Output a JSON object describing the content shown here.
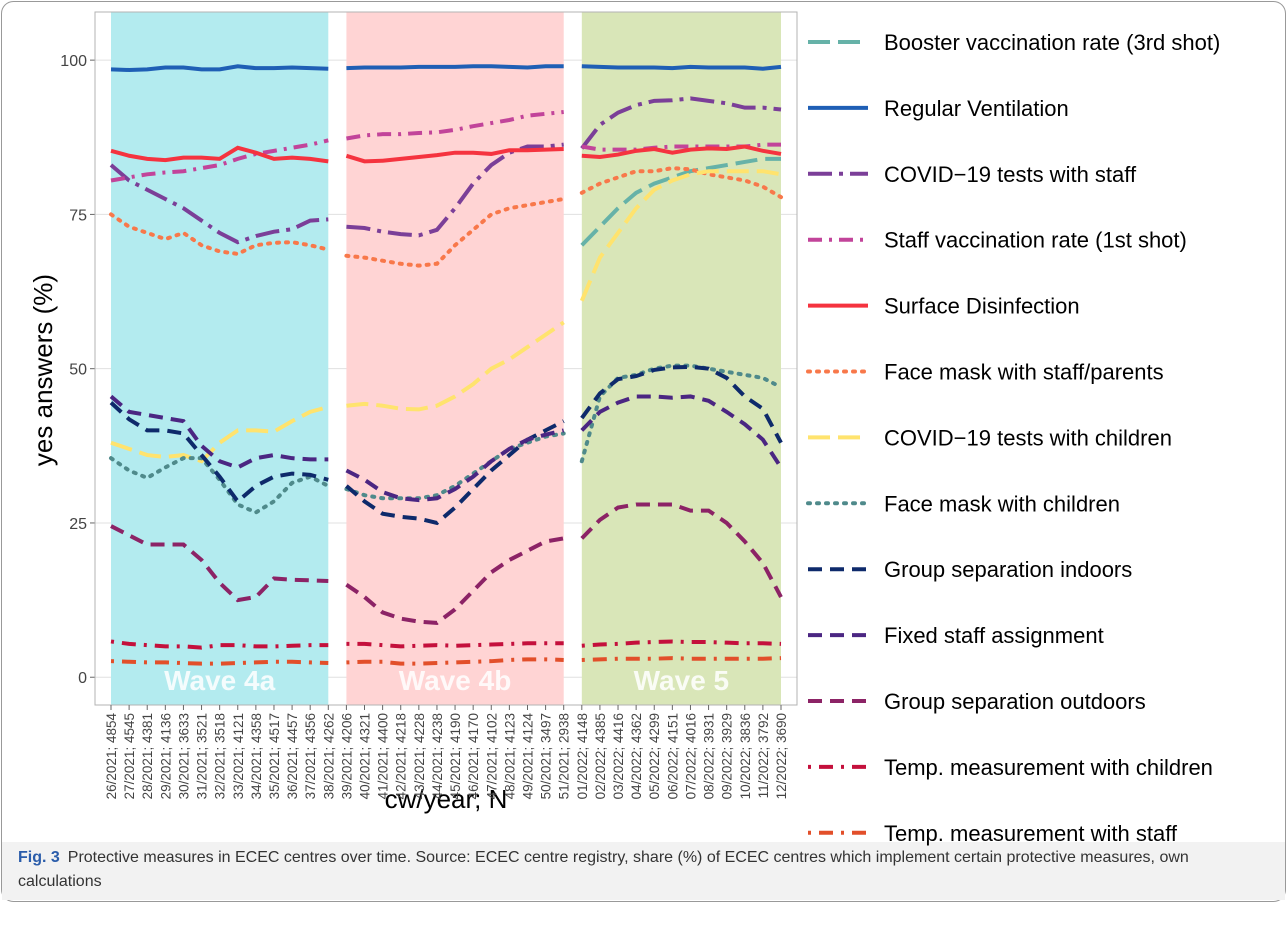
{
  "chart_data": {
    "type": "line",
    "y_label": "yes answers (%)",
    "x_label": "cw/year; N",
    "caption_label": "Fig. 3",
    "caption": "Protective measures in ECEC centres over time. Source: ECEC centre registry, share (%) of ECEC centres which implement certain protective measures, own calculations",
    "categories": [
      "26/2021; 4854",
      "27/2021; 4545",
      "28/2021; 4381",
      "29/2021; 4136",
      "30/2021; 3633",
      "31/2021; 3521",
      "32/2021; 3518",
      "33/2021; 4121",
      "34/2021; 4358",
      "35/2021; 4517",
      "36/2021; 4457",
      "37/2021; 4356",
      "38/2021; 4262",
      "39/2021; 4206",
      "40/2021; 4321",
      "41/2021; 4400",
      "42/2021; 4218",
      "43/2021; 4228",
      "44/2021; 4238",
      "45/2021; 4190",
      "46/2021; 4170",
      "47/2021; 4102",
      "48/2021; 4123",
      "49/2021; 4124",
      "50/2021; 3497",
      "51/2021; 2938",
      "01/2022; 4148",
      "02/2022; 4385",
      "03/2022; 4416",
      "04/2022; 4362",
      "05/2022; 4299",
      "06/2022; 4151",
      "07/2022; 4016",
      "08/2022; 3931",
      "09/2022; 3929",
      "10/2022; 3836",
      "11/2022; 3792",
      "12/2022; 3690"
    ],
    "bands": [
      {
        "label": "Wave 4a",
        "color": "#b3ebef",
        "from": "26/2021; 4854",
        "to": "38/2021; 4262"
      },
      {
        "label": "Wave 4b",
        "color": "#ffd4d4",
        "from": "39/2021; 4206",
        "to": "51/2021; 2938"
      },
      {
        "label": "Wave 5",
        "color": "#d9e6b8",
        "from": "01/2022; 4148",
        "to": "12/2022; 3690"
      }
    ],
    "ylim": [
      -4.5,
      107.8
    ],
    "yticks": [
      0,
      25,
      50,
      75,
      100
    ],
    "grid": true,
    "legend": "right",
    "series": [
      {
        "name": "Booster vaccination rate (3rd shot)",
        "color": "#66b2a8",
        "dash": "longdash",
        "values": [
          null,
          null,
          null,
          null,
          null,
          null,
          null,
          null,
          null,
          null,
          null,
          null,
          null,
          null,
          null,
          null,
          null,
          null,
          null,
          null,
          null,
          null,
          null,
          null,
          null,
          null,
          70,
          73,
          76,
          78.5,
          80,
          81,
          82,
          82.5,
          83,
          83.5,
          84,
          84
        ]
      },
      {
        "name": "Regular Ventilation",
        "color": "#1f5fb5",
        "dash": "solid",
        "values": [
          98.5,
          98.4,
          98.5,
          98.8,
          98.8,
          98.5,
          98.5,
          99,
          98.7,
          98.7,
          98.8,
          98.7,
          98.6,
          98.7,
          98.8,
          98.8,
          98.8,
          98.9,
          98.9,
          98.9,
          99,
          99,
          98.9,
          98.8,
          99,
          99,
          99,
          98.9,
          98.8,
          98.8,
          98.8,
          98.7,
          98.9,
          98.8,
          98.8,
          98.8,
          98.6,
          98.9
        ]
      },
      {
        "name": "COVID−19 tests with staff",
        "color": "#7b3f98",
        "dash": "twodash",
        "values": [
          83,
          80.5,
          79,
          77.5,
          76,
          74,
          72,
          70.5,
          71.5,
          72.2,
          72.6,
          74,
          74.2,
          73,
          72.8,
          72.2,
          71.8,
          71.6,
          72.5,
          76,
          80,
          83,
          85,
          86,
          86,
          86.3,
          85.7,
          89.5,
          91.5,
          92.7,
          93.4,
          93.5,
          93.8,
          93.4,
          93,
          92.3,
          92.3,
          92
        ]
      },
      {
        "name": "Staff vaccination rate (1st shot)",
        "color": "#c2449a",
        "dash": "dashdot",
        "values": [
          80.5,
          81,
          81.5,
          81.8,
          82,
          82.5,
          83,
          84,
          84.8,
          85.3,
          85.8,
          86.3,
          87,
          87.3,
          87.8,
          88,
          88,
          88.2,
          88.3,
          88.7,
          89.3,
          89.8,
          90.3,
          91,
          91.3,
          91.6,
          86,
          85.5,
          85.5,
          85.5,
          85.8,
          86,
          86,
          86,
          86,
          86,
          86.3,
          86.3
        ]
      },
      {
        "name": "Surface Disinfection",
        "color": "#f5333f",
        "dash": "solid",
        "values": [
          85.3,
          84.5,
          84,
          83.8,
          84.2,
          84.2,
          84,
          85.8,
          85,
          84,
          84.2,
          84,
          83.6,
          84.5,
          83.6,
          83.7,
          84,
          84.3,
          84.6,
          85,
          85,
          84.8,
          85.4,
          85.4,
          85.5,
          85.6,
          84.5,
          84.3,
          84.7,
          85.3,
          85.6,
          85,
          85.5,
          85.7,
          85.6,
          86,
          85.3,
          84.8
        ]
      },
      {
        "name": "Face mask with staff/parents",
        "color": "#f8784a",
        "dash": "dotted",
        "values": [
          75,
          73,
          72,
          71,
          72,
          70,
          69,
          68.6,
          70,
          70.4,
          70.5,
          70,
          69.3,
          68.3,
          68,
          67.5,
          67,
          66.7,
          67,
          70,
          72.5,
          75,
          76,
          76.5,
          77,
          77.5,
          78.5,
          80,
          81,
          82,
          82,
          82.5,
          82.3,
          81.5,
          81,
          80.5,
          79.5,
          77.8
        ]
      },
      {
        "name": "COVID−19 tests with children",
        "color": "#ffe36e",
        "dash": "longdash",
        "values": [
          38,
          37,
          36,
          35.7,
          36,
          35,
          38,
          40,
          40,
          39.8,
          41.5,
          43,
          43.8,
          44,
          44.3,
          44,
          43.5,
          43.4,
          44,
          45.5,
          47.5,
          50,
          51.5,
          53.5,
          55.5,
          57.5,
          61,
          68,
          72,
          76,
          79,
          80.5,
          81.5,
          82,
          82,
          82,
          82,
          81.5
        ]
      },
      {
        "name": "Face mask with children",
        "color": "#4f8a8b",
        "dash": "dotted",
        "values": [
          35.5,
          33.5,
          32.3,
          34,
          35.5,
          35.5,
          32,
          28,
          26.7,
          28.5,
          31.5,
          32.5,
          31,
          30.5,
          29.5,
          29,
          29,
          29,
          29.5,
          31,
          33,
          35,
          37,
          38,
          39,
          39.5,
          35,
          45.5,
          48.5,
          49,
          50,
          50.5,
          50.5,
          50,
          49.5,
          49,
          48.5,
          47
        ]
      },
      {
        "name": "Group separation indoors",
        "color": "#0e2a6b",
        "dash": "dashed",
        "values": [
          44.5,
          41.8,
          40,
          40,
          39.5,
          36,
          32.5,
          28.5,
          31,
          32.5,
          33,
          32.8,
          32,
          31,
          28.5,
          26.5,
          26,
          25.7,
          25,
          27.5,
          30.5,
          33.5,
          36,
          38.5,
          40,
          41.5,
          42,
          46,
          48.3,
          48.8,
          49.8,
          50.2,
          50.3,
          50,
          48.5,
          45.5,
          43.5,
          38
        ]
      },
      {
        "name": "Fixed staff assignment",
        "color": "#4b2682",
        "dash": "dashed",
        "values": [
          45.5,
          43,
          42.5,
          42,
          41.5,
          37.5,
          35,
          34,
          35.5,
          36,
          35.5,
          35.3,
          35.3,
          33.5,
          32,
          30,
          29,
          28.7,
          29,
          30.5,
          32.5,
          35,
          37,
          38.5,
          39.3,
          40,
          40,
          43,
          44.5,
          45.5,
          45.5,
          45.3,
          45.5,
          44.8,
          43,
          41,
          38.5,
          34
        ]
      },
      {
        "name": "Group separation outdoors",
        "color": "#8c2366",
        "dash": "dashed",
        "values": [
          24.5,
          23,
          21.5,
          21.5,
          21.5,
          19,
          15.3,
          12.5,
          13,
          16,
          15.8,
          15.7,
          15.6,
          15,
          13,
          10.5,
          9.5,
          9,
          8.8,
          11,
          14,
          17,
          19,
          20.5,
          22,
          22.5,
          22.5,
          25.5,
          27.5,
          28,
          28,
          28,
          27,
          27,
          25,
          22,
          18.5,
          13
        ]
      },
      {
        "name": "Temp. measurement with children",
        "color": "#c4103c",
        "dash": "dotdash",
        "values": [
          5.8,
          5.4,
          5.2,
          5,
          5,
          4.8,
          5.2,
          5.2,
          5,
          5,
          5.1,
          5.2,
          5.2,
          5.4,
          5.4,
          5.2,
          5,
          5.1,
          5.2,
          5.1,
          5.2,
          5.3,
          5.4,
          5.5,
          5.5,
          5.5,
          5.1,
          5.3,
          5.4,
          5.6,
          5.7,
          5.8,
          5.7,
          5.7,
          5.6,
          5.5,
          5.5,
          5.4
        ]
      },
      {
        "name": "Temp. measurement with staff",
        "color": "#e24f2a",
        "dash": "dotdash",
        "values": [
          2.6,
          2.5,
          2.4,
          2.4,
          2.3,
          2.2,
          2.2,
          2.3,
          2.4,
          2.5,
          2.5,
          2.4,
          2.3,
          2.4,
          2.5,
          2.5,
          2.2,
          2.2,
          2.3,
          2.4,
          2.5,
          2.6,
          2.8,
          2.9,
          2.9,
          2.8,
          2.8,
          2.9,
          3,
          3,
          3,
          3.1,
          3,
          3,
          3,
          3,
          3,
          3.1
        ]
      }
    ]
  }
}
